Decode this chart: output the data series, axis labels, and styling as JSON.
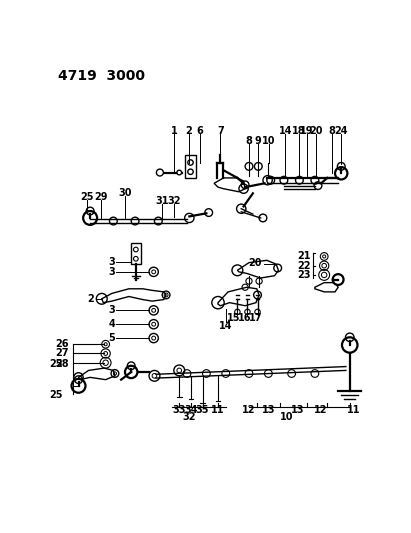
{
  "title": "4719  3000",
  "bg_color": "#ffffff",
  "line_color": "#000000",
  "title_fontsize": 10,
  "label_fontsize": 7,
  "fig_width": 4.11,
  "fig_height": 5.33,
  "dpi": 100
}
